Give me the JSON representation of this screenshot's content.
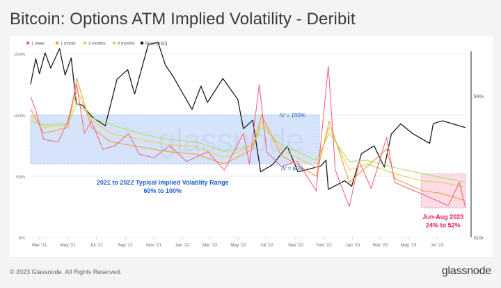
{
  "title": "Bitcoin: Options ATM Implied Volatility - Deribit",
  "footer": {
    "copyright": "© 2023 Glassnode. All Rights Reserved.",
    "brand": "glassnode"
  },
  "watermark": "glassnode",
  "colors": {
    "1w": "#f7637d",
    "1m": "#f59a3b",
    "3m": "#f3c94a",
    "6m": "#a8e067",
    "price": "#1a1a1a",
    "band_fill": "#c7dbf8",
    "band_stroke": "#8db0e6",
    "annot_blue": "#1f5bd6",
    "pink_fill": "#fbd4e1",
    "annot_pink": "#e8185c"
  },
  "chart_data": {
    "type": "line",
    "title": "Bitcoin: Options ATM Implied Volatility - Deribit",
    "x_ticks": [
      "Mar '21",
      "May '21",
      "Jul '21",
      "Sep '21",
      "Nov '21",
      "Jan '22",
      "Mar '22",
      "May '22",
      "Jul '22",
      "Sep '22",
      "Nov '22",
      "Jan '23",
      "Mar '23",
      "May '23",
      "Jul '23"
    ],
    "x_range": [
      "2021-02-10",
      "2023-08-31"
    ],
    "y_left": {
      "ticks": [
        "0%",
        "50%",
        "100%",
        "150%"
      ],
      "range": [
        0,
        1.6
      ]
    },
    "y_right": {
      "ticks": [
        "$10k",
        "$40k"
      ],
      "range_usd": [
        10000,
        68000
      ],
      "scale": "log"
    },
    "grid": true,
    "legend_position": "top-left",
    "legend": [
      "1 week",
      "1 month",
      "3 months",
      "6 months",
      "Price [USD]"
    ],
    "series": [
      {
        "name": "Price [USD]",
        "axis": "right",
        "points": [
          [
            "2021-02-10",
            44800
          ],
          [
            "2021-02-21",
            57500
          ],
          [
            "2021-03-01",
            49600
          ],
          [
            "2021-03-13",
            60900
          ],
          [
            "2021-03-25",
            52500
          ],
          [
            "2021-04-13",
            63500
          ],
          [
            "2021-04-25",
            49000
          ],
          [
            "2021-05-08",
            58000
          ],
          [
            "2021-05-19",
            37000
          ],
          [
            "2021-06-01",
            36500
          ],
          [
            "2021-06-22",
            32500
          ],
          [
            "2021-07-20",
            29800
          ],
          [
            "2021-08-14",
            47000
          ],
          [
            "2021-09-06",
            51700
          ],
          [
            "2021-09-21",
            40700
          ],
          [
            "2021-10-20",
            66000
          ],
          [
            "2021-11-10",
            67500
          ],
          [
            "2021-11-26",
            54000
          ],
          [
            "2021-12-12",
            48500
          ],
          [
            "2022-01-22",
            35000
          ],
          [
            "2022-02-10",
            44000
          ],
          [
            "2022-02-24",
            37500
          ],
          [
            "2022-03-29",
            47400
          ],
          [
            "2022-04-30",
            38600
          ],
          [
            "2022-05-12",
            29000
          ],
          [
            "2022-06-01",
            31500
          ],
          [
            "2022-06-18",
            19000
          ],
          [
            "2022-07-14",
            20400
          ],
          [
            "2022-08-14",
            24400
          ],
          [
            "2022-09-06",
            19000
          ],
          [
            "2022-09-29",
            19500
          ],
          [
            "2022-10-25",
            20100
          ],
          [
            "2022-11-05",
            21300
          ],
          [
            "2022-11-10",
            16000
          ],
          [
            "2022-12-15",
            17400
          ],
          [
            "2022-12-30",
            16500
          ],
          [
            "2023-01-20",
            22700
          ],
          [
            "2023-02-16",
            24500
          ],
          [
            "2023-03-10",
            19900
          ],
          [
            "2023-03-25",
            27500
          ],
          [
            "2023-04-14",
            30400
          ],
          [
            "2023-05-10",
            27600
          ],
          [
            "2023-06-15",
            25100
          ],
          [
            "2023-06-23",
            30500
          ],
          [
            "2023-07-13",
            31300
          ],
          [
            "2023-08-31",
            29300
          ]
        ]
      },
      {
        "name": "6 months",
        "axis": "left",
        "points": [
          [
            "2021-02-10",
            0.95
          ],
          [
            "2021-03-10",
            0.92
          ],
          [
            "2021-05-01",
            0.93
          ],
          [
            "2021-05-20",
            1.1
          ],
          [
            "2021-06-20",
            0.98
          ],
          [
            "2021-08-01",
            0.92
          ],
          [
            "2021-10-01",
            0.85
          ],
          [
            "2021-12-01",
            0.8
          ],
          [
            "2022-02-01",
            0.78
          ],
          [
            "2022-04-01",
            0.7
          ],
          [
            "2022-06-01",
            0.75
          ],
          [
            "2022-06-20",
            0.9
          ],
          [
            "2022-08-01",
            0.76
          ],
          [
            "2022-10-15",
            0.63
          ],
          [
            "2022-11-12",
            0.85
          ],
          [
            "2022-12-25",
            0.62
          ],
          [
            "2023-02-01",
            0.63
          ],
          [
            "2023-04-01",
            0.57
          ],
          [
            "2023-06-01",
            0.52
          ],
          [
            "2023-07-10",
            0.49
          ],
          [
            "2023-08-31",
            0.45
          ]
        ]
      },
      {
        "name": "3 months",
        "axis": "left",
        "points": [
          [
            "2021-02-10",
            1.0
          ],
          [
            "2021-03-10",
            0.9
          ],
          [
            "2021-05-01",
            0.92
          ],
          [
            "2021-05-20",
            1.2
          ],
          [
            "2021-06-20",
            0.96
          ],
          [
            "2021-08-01",
            0.85
          ],
          [
            "2021-10-01",
            0.8
          ],
          [
            "2021-12-01",
            0.76
          ],
          [
            "2022-02-01",
            0.74
          ],
          [
            "2022-04-01",
            0.65
          ],
          [
            "2022-06-01",
            0.75
          ],
          [
            "2022-06-20",
            0.95
          ],
          [
            "2022-08-01",
            0.72
          ],
          [
            "2022-10-15",
            0.57
          ],
          [
            "2022-11-12",
            0.9
          ],
          [
            "2022-12-25",
            0.55
          ],
          [
            "2023-02-01",
            0.6
          ],
          [
            "2023-04-01",
            0.52
          ],
          [
            "2023-06-01",
            0.46
          ],
          [
            "2023-07-10",
            0.45
          ],
          [
            "2023-08-31",
            0.41
          ]
        ]
      },
      {
        "name": "1 month",
        "axis": "left",
        "points": [
          [
            "2021-02-10",
            1.05
          ],
          [
            "2021-03-10",
            0.85
          ],
          [
            "2021-05-01",
            0.9
          ],
          [
            "2021-05-20",
            1.3
          ],
          [
            "2021-06-20",
            0.9
          ],
          [
            "2021-08-01",
            0.78
          ],
          [
            "2021-10-01",
            0.74
          ],
          [
            "2021-12-01",
            0.7
          ],
          [
            "2022-02-01",
            0.68
          ],
          [
            "2022-04-01",
            0.6
          ],
          [
            "2022-06-01",
            0.72
          ],
          [
            "2022-06-20",
            1.0
          ],
          [
            "2022-08-01",
            0.67
          ],
          [
            "2022-10-15",
            0.5
          ],
          [
            "2022-11-12",
            0.95
          ],
          [
            "2022-12-25",
            0.45
          ],
          [
            "2023-02-01",
            0.58
          ],
          [
            "2023-03-15",
            0.72
          ],
          [
            "2023-04-01",
            0.48
          ],
          [
            "2023-06-01",
            0.38
          ],
          [
            "2023-07-10",
            0.36
          ],
          [
            "2023-08-31",
            0.3
          ]
        ]
      },
      {
        "name": "1 week",
        "axis": "left",
        "points": [
          [
            "2021-02-10",
            1.15
          ],
          [
            "2021-02-20",
            1.05
          ],
          [
            "2021-03-10",
            0.8
          ],
          [
            "2021-04-10",
            0.78
          ],
          [
            "2021-05-01",
            0.95
          ],
          [
            "2021-05-20",
            1.25
          ],
          [
            "2021-06-05",
            0.85
          ],
          [
            "2021-06-20",
            0.95
          ],
          [
            "2021-07-15",
            0.72
          ],
          [
            "2021-08-10",
            0.75
          ],
          [
            "2021-09-08",
            0.85
          ],
          [
            "2021-10-01",
            0.68
          ],
          [
            "2021-11-01",
            0.65
          ],
          [
            "2021-12-05",
            0.75
          ],
          [
            "2022-01-10",
            0.62
          ],
          [
            "2022-02-25",
            0.7
          ],
          [
            "2022-04-01",
            0.55
          ],
          [
            "2022-05-12",
            0.85
          ],
          [
            "2022-05-25",
            0.6
          ],
          [
            "2022-06-15",
            1.25
          ],
          [
            "2022-07-01",
            0.7
          ],
          [
            "2022-08-01",
            0.58
          ],
          [
            "2022-09-05",
            0.62
          ],
          [
            "2022-10-15",
            0.38
          ],
          [
            "2022-11-10",
            1.4
          ],
          [
            "2022-11-25",
            0.55
          ],
          [
            "2022-12-25",
            0.25
          ],
          [
            "2023-01-15",
            0.62
          ],
          [
            "2023-02-10",
            0.4
          ],
          [
            "2023-03-15",
            0.82
          ],
          [
            "2023-04-01",
            0.45
          ],
          [
            "2023-05-01",
            0.4
          ],
          [
            "2023-06-01",
            0.35
          ],
          [
            "2023-07-01",
            0.3
          ],
          [
            "2023-07-25",
            0.26
          ],
          [
            "2023-08-18",
            0.45
          ],
          [
            "2023-08-31",
            0.24
          ]
        ]
      }
    ],
    "annotations": {
      "band": {
        "from": "2021-02-10",
        "to": "2022-10-22",
        "y_low": 0.6,
        "y_high": 1.0
      },
      "band_label_high": "IV = 100%",
      "band_label_low": "IV = 60%",
      "band_caption_1": "2021 to 2022 Typical Implied Volatility Range",
      "band_caption_2": "60% to 100%",
      "recent_box": {
        "from": "2023-05-28",
        "to": "2023-08-31",
        "y_low": 0.24,
        "y_high": 0.52
      },
      "recent_caption_1": "Jun-Aug 2023",
      "recent_caption_2": "24% to 52%"
    }
  }
}
